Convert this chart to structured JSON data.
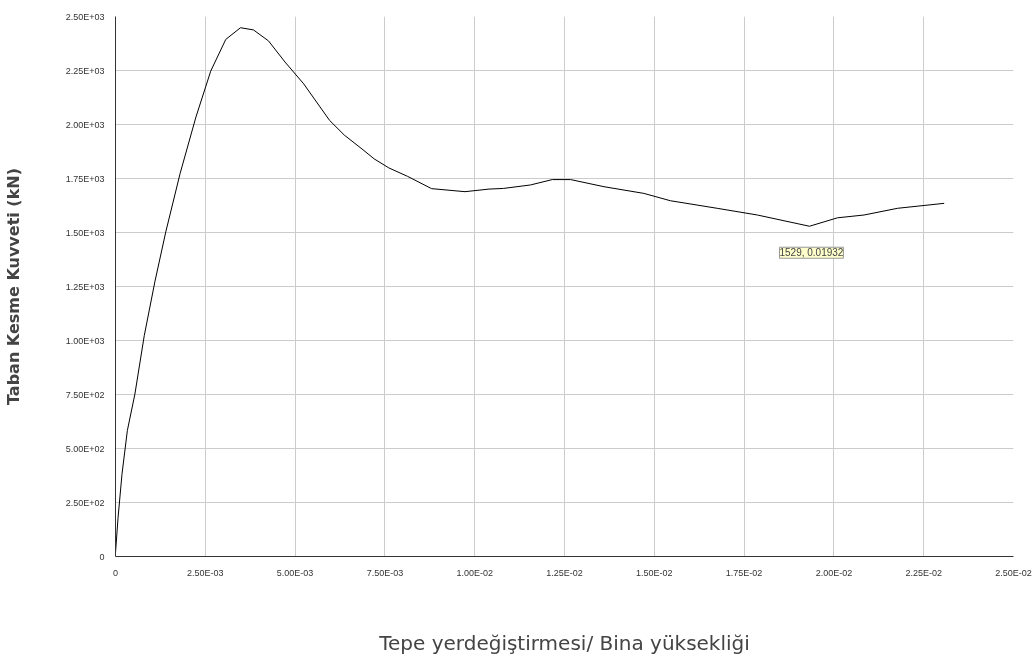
{
  "chart_data": {
    "type": "line",
    "xlabel": "Tepe yerdeğiştirmesi/ Bina yüksekliği",
    "ylabel": "Taban Kesme Kuvveti (kN)",
    "x": [
      0,
      7e-05,
      0.00018,
      0.00033,
      0.00054,
      0.0008,
      0.0011,
      0.0014,
      0.0018,
      0.00224,
      0.00265,
      0.00307,
      0.00348,
      0.00384,
      0.00426,
      0.00472,
      0.00524,
      0.00596,
      0.00637,
      0.00689,
      0.0072,
      0.00761,
      0.00813,
      0.0088,
      0.00973,
      0.0104,
      0.0108,
      0.01155,
      0.01216,
      0.01267,
      0.0136,
      0.01471,
      0.01545,
      0.01675,
      0.01787,
      0.01932,
      0.0201,
      0.02084,
      0.02177,
      0.02307
    ],
    "series": [
      {
        "color": "#000000",
        "values": [
          17,
          177,
          380,
          583,
          752,
          1022,
          1275,
          1503,
          1774,
          2035,
          2247,
          2394,
          2448,
          2438,
          2387,
          2289,
          2188,
          2019,
          1951,
          1883,
          1841,
          1799,
          1760,
          1703,
          1689,
          1701,
          1704,
          1720,
          1745,
          1745,
          1712,
          1681,
          1647,
          1612,
          1581,
          1529,
          1568,
          1581,
          1612,
          1635
        ]
      }
    ],
    "xlim": [
      0,
      0.025
    ],
    "ylim": [
      0,
      2500
    ],
    "xticks": [
      0,
      {
        "value": 0.0025,
        "label": "2.50E-03"
      },
      {
        "value": 0.005,
        "label": "5.00E-03"
      },
      {
        "value": 0.0075,
        "label": "7.50E-03"
      },
      {
        "value": 0.01,
        "label": "1.00E-02"
      },
      {
        "value": 0.0125,
        "label": "1.25E-02"
      },
      {
        "value": 0.015,
        "label": "1.50E-02"
      },
      {
        "value": 0.0175,
        "label": "1.75E-02"
      },
      {
        "value": 0.02,
        "label": "2.00E-02"
      },
      {
        "value": 0.0225,
        "label": "2.25E-02"
      },
      {
        "value": 0.025,
        "label": "2.50E-02"
      }
    ],
    "yticks": [
      0,
      {
        "value": 250,
        "label": "2.50E+02"
      },
      {
        "value": 500,
        "label": "5.00E+02"
      },
      {
        "value": 750,
        "label": "7.50E+02"
      },
      {
        "value": 1000,
        "label": "1.00E+03"
      },
      {
        "value": 1250,
        "label": "1.25E+03"
      },
      {
        "value": 1500,
        "label": "1.50E+03"
      },
      {
        "value": 1750,
        "label": "1.75E+03"
      },
      {
        "value": 2000,
        "label": "2.00E+03"
      },
      {
        "value": 2250,
        "label": "2.25E+03"
      },
      {
        "value": 2500,
        "label": "2.50E+03"
      }
    ],
    "grid": true,
    "marker": "none",
    "line_style": "solid",
    "annotations": [
      {
        "text": "1529, 0.01932",
        "x": 0.01932,
        "y": 1529
      }
    ]
  }
}
